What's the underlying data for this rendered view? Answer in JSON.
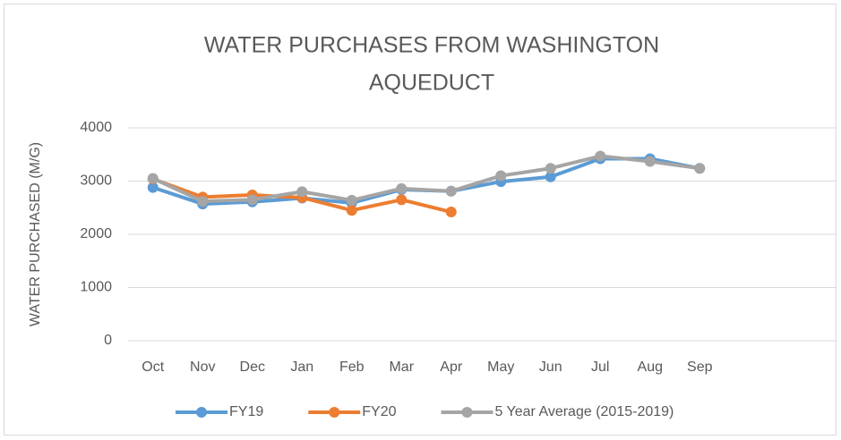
{
  "chart_data": {
    "type": "line",
    "title": [
      "WATER PURCHASES FROM WASHINGTON",
      "AQUEDUCT"
    ],
    "y_label": "WATER PURCHASED (M/G)",
    "categories": [
      "Oct",
      "Nov",
      "Dec",
      "Jan",
      "Feb",
      "Mar",
      "Apr",
      "May",
      "Jun",
      "Jul",
      "Aug",
      "Sep",
      null,
      null
    ],
    "series": [
      {
        "name": "FY19",
        "color": "#5b9bd5",
        "values": [
          2880,
          2570,
          2610,
          2680,
          2590,
          2840,
          2810,
          2990,
          3080,
          3420,
          3420,
          3240,
          null,
          null
        ]
      },
      {
        "name": "FY20",
        "color": "#ed7d31",
        "values": [
          3040,
          2700,
          2740,
          2690,
          2450,
          2650,
          2420,
          null,
          null,
          null,
          null,
          null,
          null,
          null
        ]
      },
      {
        "name": "5 Year Average (2015-2019)",
        "color": "#a5a5a5",
        "values": [
          3050,
          2620,
          2650,
          2800,
          2640,
          2860,
          2810,
          3100,
          3240,
          3470,
          3370,
          3240,
          null,
          null
        ]
      }
    ],
    "ylim": [
      0,
      4000
    ],
    "yticks": [
      0,
      1000,
      2000,
      3000,
      4000
    ],
    "grid": true,
    "legend": "bottom"
  }
}
